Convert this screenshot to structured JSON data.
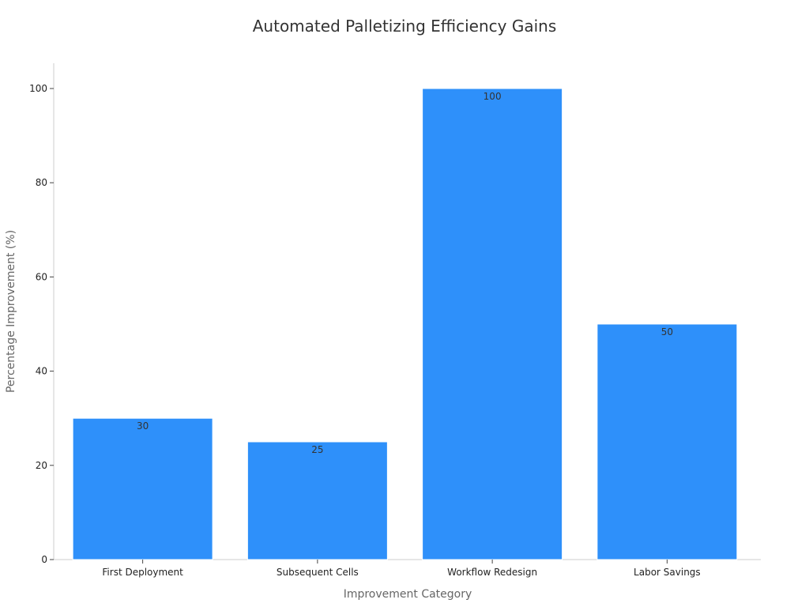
{
  "chart_data": {
    "type": "bar",
    "title": "Automated Palletizing Efficiency Gains",
    "xlabel": "Improvement Category",
    "ylabel": "Percentage Improvement (%)",
    "categories": [
      "First Deployment",
      "Subsequent Cells",
      "Workflow Redesign",
      "Labor Savings"
    ],
    "values": [
      30,
      25,
      100,
      50
    ],
    "data_labels": [
      "30",
      "25",
      "100",
      "50"
    ],
    "y_ticks": [
      0,
      20,
      40,
      60,
      80,
      100
    ],
    "ylim": [
      0,
      105
    ],
    "bar_color": "#2e90fa",
    "grid": false,
    "legend": "none"
  }
}
